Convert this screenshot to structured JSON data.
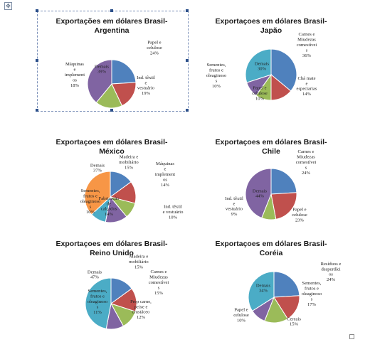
{
  "colors": {
    "blue": "#4f81bd",
    "red": "#c0504d",
    "green": "#9bbb59",
    "purple": "#8064a2",
    "teal": "#4bacc6",
    "orange": "#f79646"
  },
  "chart_data": [
    {
      "type": "pie",
      "title_lines": [
        "Exportações em dólares Brasil-",
        "Argentina"
      ],
      "slices": [
        {
          "label": "Papel e celulose",
          "value": 24,
          "color": "#4f81bd",
          "label_lines": [
            "Papel e",
            "celulose",
            "24%"
          ]
        },
        {
          "label": "Ind. têxtil e vestuário",
          "value": 19,
          "color": "#c0504d",
          "label_lines": [
            "Ind. têxtil",
            "e",
            "vestuário",
            "19%"
          ]
        },
        {
          "label": "Máquinas e implementos",
          "value": 18,
          "color": "#9bbb59",
          "label_lines": [
            "Máquinas",
            "e",
            "implement",
            "os",
            "18%"
          ]
        },
        {
          "label": "Demais",
          "value": 39,
          "color": "#8064a2",
          "label_lines": [
            "Demais",
            "39%"
          ]
        }
      ]
    },
    {
      "type": "pie",
      "title_lines": [
        "Exportaçoes em dólares Brasil-",
        "Japão"
      ],
      "slices": [
        {
          "label": "Carnes e Miudezas comestíveis",
          "value": 36,
          "color": "#4f81bd",
          "label_lines": [
            "Carnes e",
            "Miudezas",
            "comestívei",
            "s",
            "36%"
          ]
        },
        {
          "label": "Chá mate e especiarias",
          "value": 14,
          "color": "#c0504d",
          "label_lines": [
            "Chá mate",
            "e",
            "especiarias",
            "14%"
          ]
        },
        {
          "label": "Papel e celulose",
          "value": 10,
          "color": "#9bbb59",
          "label_lines": [
            "Papel e",
            "celulose",
            "10%"
          ]
        },
        {
          "label": "Sementes, frutos e oleaginosos",
          "value": 10,
          "color": "#8064a2",
          "label_lines": [
            "Sementes,",
            "frutos e",
            "oleaginoso",
            "s",
            "10%"
          ]
        },
        {
          "label": "Demais",
          "value": 30,
          "color": "#4bacc6",
          "label_lines": [
            "Demais",
            "30%"
          ]
        }
      ]
    },
    {
      "type": "pie",
      "title_lines": [
        "Exportaçoes em dólares Brasil-",
        "México"
      ],
      "slices": [
        {
          "label": "Madeira e mobiliário",
          "value": 15,
          "color": "#4f81bd",
          "label_lines": [
            "Madeira e",
            "mobiliário",
            "15%"
          ]
        },
        {
          "label": "Máquinas e implementos",
          "value": 14,
          "color": "#c0504d",
          "label_lines": [
            "Máquinas",
            "e",
            "implement",
            "os",
            "14%"
          ]
        },
        {
          "label": "Ind. têxtil e vestuário",
          "value": 10,
          "color": "#9bbb59",
          "label_lines": [
            "Ind. têxtil",
            "e vestuário",
            "10%"
          ]
        },
        {
          "label": "Fabricação de calçados",
          "value": 14,
          "color": "#8064a2",
          "label_lines": [
            "Fabricação",
            "de",
            "calçados",
            "14%"
          ]
        },
        {
          "label": "Sementes, frutos e oleaginosos",
          "value": 10,
          "color": "#4bacc6",
          "label_lines": [
            "Sementes,",
            "frutos e",
            "oleaginoso",
            "s",
            "10%"
          ]
        },
        {
          "label": "Demais",
          "value": 37,
          "color": "#f79646",
          "label_lines": [
            "Demais",
            "37%"
          ]
        }
      ]
    },
    {
      "type": "pie",
      "title_lines": [
        "Exportaçoes em dólares Brasil-",
        "Chile"
      ],
      "slices": [
        {
          "label": "Carnes e Miudezas comestíveis",
          "value": 24,
          "color": "#4f81bd",
          "label_lines": [
            "Carnes e",
            "Miudezas",
            "comestívei",
            "s",
            "24%"
          ]
        },
        {
          "label": "Papel e celulose",
          "value": 23,
          "color": "#c0504d",
          "label_lines": [
            "Papel e",
            "celulose",
            "23%"
          ]
        },
        {
          "label": "Ind. têxtil e vestuário",
          "value": 9,
          "color": "#9bbb59",
          "label_lines": [
            "Ind. têxtil",
            "e",
            "vestuário",
            "9%"
          ]
        },
        {
          "label": "Demais",
          "value": 44,
          "color": "#8064a2",
          "label_lines": [
            "Demais",
            "44%"
          ]
        }
      ]
    },
    {
      "type": "pie",
      "title_lines": [
        "Exportaçoes em dólares Brasil-",
        "Reino Unido"
      ],
      "slices": [
        {
          "label": "Madeira e mobiliário",
          "value": 15,
          "color": "#4f81bd",
          "label_lines": [
            "Madeira e",
            "mobiliário",
            "15%"
          ]
        },
        {
          "label": "Carnes e Miudezas comestíveis",
          "value": 15,
          "color": "#c0504d",
          "label_lines": [
            "Carnes e",
            "Miudezas",
            "comestívei",
            "s",
            "15%"
          ]
        },
        {
          "label": "Prep carne, peixe e crustáceo",
          "value": 12,
          "color": "#9bbb59",
          "label_lines": [
            "Prep carne,",
            "peixe e",
            "crustáceo",
            "12%"
          ]
        },
        {
          "label": "Sementes, frutos e oleaginosos",
          "value": 11,
          "color": "#8064a2",
          "label_lines": [
            "Sementes,",
            "frutos e",
            "oleaginoso",
            "s",
            "11%"
          ]
        },
        {
          "label": "Demais",
          "value": 47,
          "color": "#4bacc6",
          "label_lines": [
            "Demais",
            "47%"
          ]
        }
      ]
    },
    {
      "type": "pie",
      "title_lines": [
        "Exportaçoes em dólares Brasil-",
        "Coréia"
      ],
      "slices": [
        {
          "label": "Resíduos e desperdícios",
          "value": 24,
          "color": "#4f81bd",
          "label_lines": [
            "Resíduos e",
            "desperdíci",
            "os",
            "24%"
          ]
        },
        {
          "label": "Sementes, frutos e oleaginosos",
          "value": 17,
          "color": "#c0504d",
          "label_lines": [
            "Sementes,",
            "frutos e",
            "oleaginoso",
            "s",
            "17%"
          ]
        },
        {
          "label": "Cereais",
          "value": 15,
          "color": "#9bbb59",
          "label_lines": [
            "Cereais",
            "15%"
          ]
        },
        {
          "label": "Papel e celulose",
          "value": 10,
          "color": "#8064a2",
          "label_lines": [
            "Papel e",
            "celulose",
            "10%"
          ]
        },
        {
          "label": "Demais",
          "value": 34,
          "color": "#4bacc6",
          "label_lines": [
            "Demais",
            "34%"
          ]
        }
      ]
    }
  ]
}
